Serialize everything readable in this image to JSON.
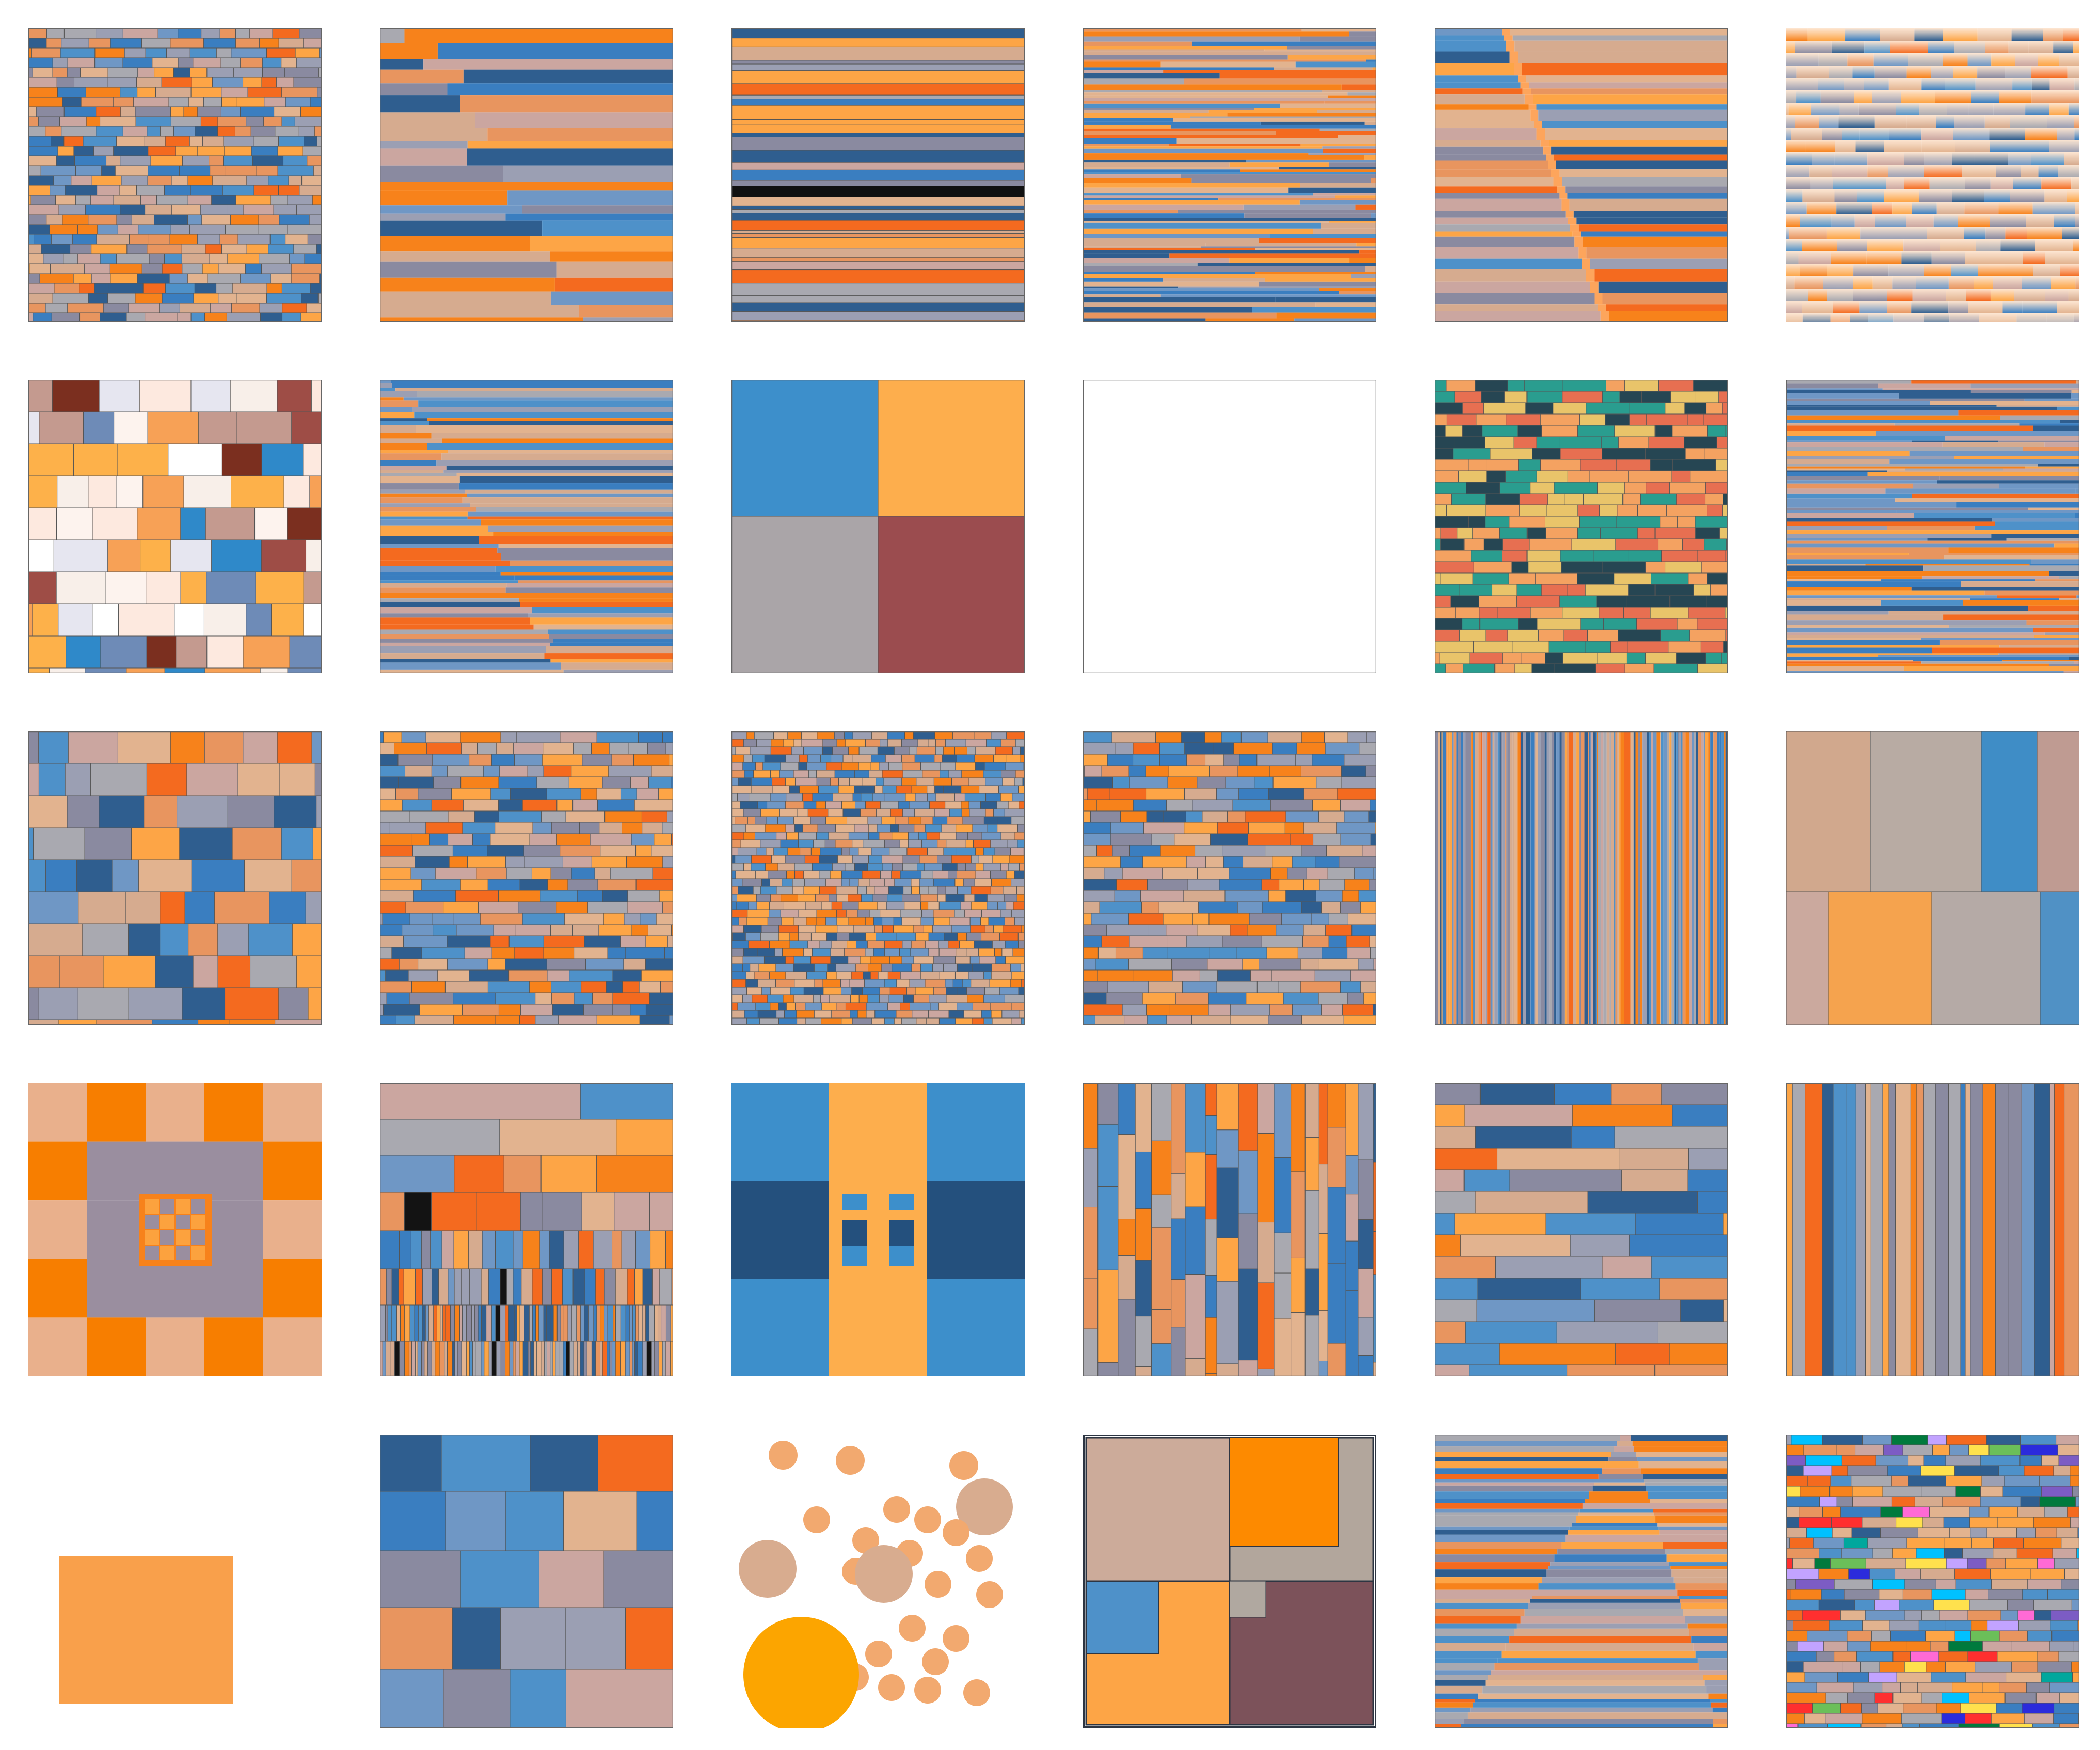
{
  "grid": {
    "rows": 5,
    "cols": 6
  },
  "palette": {
    "default": [
      "#4e91c9",
      "#fda546",
      "#f7821b",
      "#d6ab8f",
      "#a9a9b0",
      "#8a8aa0",
      "#6f97c5",
      "#cba6a0",
      "#3a7ec0",
      "#f46a1f",
      "#e8955f",
      "#9b9fb3",
      "#2f5e8f",
      "#e2b38f"
    ],
    "mosaic": [
      "#2a9d8f",
      "#264653",
      "#e9c46a",
      "#f4a261",
      "#e76f51"
    ],
    "warm_white": [
      "#f7a156",
      "#fde9df",
      "#fdf3ee",
      "#c49a8f",
      "#7b2f1f",
      "#9e4d46",
      "#ffffff",
      "#f8efe9",
      "#6e8bb7",
      "#2f89c9",
      "#fdb14a",
      "#e6e6f0"
    ],
    "bright": [
      "#ff6ad5",
      "#00c1ff",
      "#6bbf59",
      "#007a3d",
      "#2b2bdc",
      "#7c5cc4",
      "#ffe14d",
      "#00a79d",
      "#ff2f2f",
      "#c2a3ff"
    ]
  },
  "tiles": [
    {
      "id": "r1c1",
      "style": "brick-fine",
      "palette": "default",
      "seed": 11
    },
    {
      "id": "r1c2",
      "style": "stripes-stepped",
      "palette": "default",
      "seed": 12
    },
    {
      "id": "r1c3",
      "style": "stripes-h",
      "palette": "default",
      "seed": 13
    },
    {
      "id": "r1c4",
      "style": "stripes-h-fine",
      "palette": "default",
      "seed": 14
    },
    {
      "id": "r1c5",
      "style": "stripes-diagonal",
      "palette": "default",
      "seed": 15
    },
    {
      "id": "r1c6",
      "style": "brick-gradient",
      "palette": "default",
      "seed": 16
    },
    {
      "id": "r2c1",
      "style": "brick-big",
      "palette": "warm_white",
      "seed": 21
    },
    {
      "id": "r2c2",
      "style": "stripes-stepped-fine",
      "palette": "default",
      "seed": 22
    },
    {
      "id": "r2c3",
      "style": "quad",
      "palette": "default",
      "seed": 23,
      "colors": [
        "#3d8fcb",
        "#fdae4d",
        "#aaa5a8",
        "#9b4c4f"
      ]
    },
    {
      "id": "r2c4",
      "style": "brick-fan",
      "palette": "default",
      "seed": 24
    },
    {
      "id": "r2c5",
      "style": "brick-med",
      "palette": "mosaic",
      "seed": 25
    },
    {
      "id": "r2c6",
      "style": "stripes-h-fine",
      "palette": "default",
      "seed": 26
    },
    {
      "id": "r3c1",
      "style": "brick-big",
      "palette": "default",
      "seed": 31
    },
    {
      "id": "r3c2",
      "style": "brick-med",
      "palette": "default",
      "seed": 32
    },
    {
      "id": "r3c3",
      "style": "brick-tiny",
      "palette": "default",
      "seed": 33
    },
    {
      "id": "r3c4",
      "style": "brick-med",
      "palette": "default",
      "seed": 34
    },
    {
      "id": "r3c5",
      "style": "stripes-v-fine",
      "palette": "default",
      "seed": 35
    },
    {
      "id": "r3c6",
      "style": "blocks-large",
      "palette": "default",
      "seed": 36,
      "colors": [
        "#d1a88d",
        "#b8aba3",
        "#3f8dc6",
        "#bf9b92",
        "#cba99e",
        "#f5a34e",
        "#b5aaa6",
        "#5091c5"
      ]
    },
    {
      "id": "r4c1",
      "style": "concentric",
      "palette": "default",
      "seed": 41
    },
    {
      "id": "r4c2",
      "style": "rows-subdivided",
      "palette": "default",
      "seed": 42
    },
    {
      "id": "r4c3",
      "style": "cross",
      "palette": "default",
      "seed": 43,
      "colors": [
        "#3d8fcb",
        "#fdae4d",
        "#24507d"
      ]
    },
    {
      "id": "r4c4",
      "style": "columns-split",
      "palette": "default",
      "seed": 44
    },
    {
      "id": "r4c5",
      "style": "brick-wide",
      "palette": "default",
      "seed": 45
    },
    {
      "id": "r4c6",
      "style": "stripes-v",
      "palette": "default",
      "seed": 46
    },
    {
      "id": "r5c1",
      "style": "single-rect",
      "palette": "default",
      "seed": 51,
      "colors": [
        "#f9a04b"
      ]
    },
    {
      "id": "r5c2",
      "style": "grid-cells",
      "palette": "default",
      "seed": 52
    },
    {
      "id": "r5c3",
      "style": "circles",
      "palette": "default",
      "seed": 53,
      "colors": [
        "#f2a96f",
        "#d8ac8f",
        "#fca500"
      ]
    },
    {
      "id": "r5c4",
      "style": "nested-quads",
      "palette": "default",
      "seed": 54,
      "colors": [
        "#ccab9a",
        "#fd8a00",
        "#4e91c9",
        "#fda546",
        "#7c525a",
        "#b2a69c",
        "#2d3542"
      ]
    },
    {
      "id": "r5c5",
      "style": "stripes-hourglass",
      "palette": "default",
      "seed": 55
    },
    {
      "id": "r5c6",
      "style": "brick-bright",
      "palette": "default",
      "seed": 56
    }
  ]
}
